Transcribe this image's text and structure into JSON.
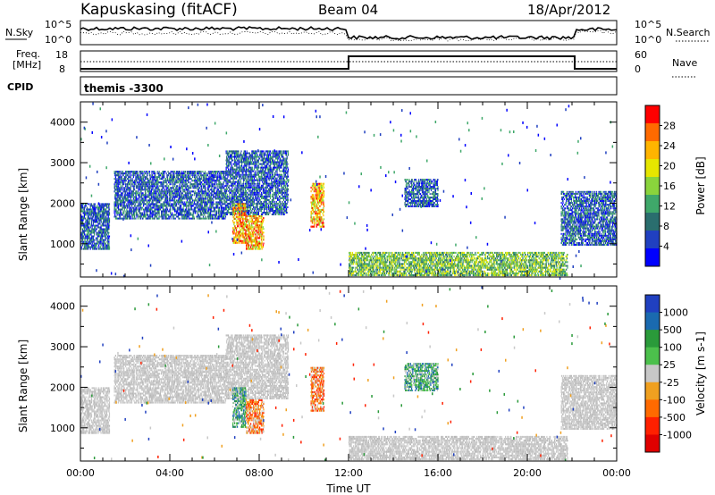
{
  "header": {
    "station": "Kapuskasing (fitACF)",
    "beam": "Beam 04",
    "date": "18/Apr/2012"
  },
  "top_panels": {
    "nsky_label": "N.Sky",
    "nsky_ticks": [
      "10^5",
      "10^0"
    ],
    "nsearch_label": "N.Search",
    "nsearch_ticks": [
      "10^5",
      "10^0"
    ],
    "freq_label_1": "Freq.",
    "freq_label_2": "[MHz]",
    "freq_ticks": [
      "18",
      "8"
    ],
    "nave_label": "Nave",
    "nave_ticks": [
      "60",
      "0"
    ],
    "cpid_label": "CPID",
    "cpid_value": "themis -3300"
  },
  "chart_data": [
    {
      "type": "heatmap",
      "title": "",
      "xlabel": "Time UT",
      "ylabel": "Slant Range [km]",
      "x_ticks": [
        "00:00",
        "04:00",
        "08:00",
        "12:00",
        "16:00",
        "20:00",
        "00:00"
      ],
      "y_ticks": [
        "1000",
        "2000",
        "3000",
        "4000"
      ],
      "xlim_hours": [
        0,
        24
      ],
      "ylim_km": [
        180,
        4500
      ],
      "colorbar": {
        "label": "Power [dB]",
        "ticks": [
          "28",
          "24",
          "20",
          "16",
          "12",
          "8",
          "4"
        ],
        "colors": [
          "#ff0000",
          "#ff6a00",
          "#ffb400",
          "#e6e600",
          "#8ad43c",
          "#3fa86a",
          "#2a6e6e",
          "#2040c0",
          "#0000ff"
        ]
      },
      "echo_regions": [
        {
          "t0": 0.0,
          "t1": 1.3,
          "r0": 850,
          "r1": 2000,
          "level": "low"
        },
        {
          "t0": 1.5,
          "t1": 6.5,
          "r0": 1600,
          "r1": 2800,
          "level": "low"
        },
        {
          "t0": 6.5,
          "t1": 9.3,
          "r0": 1700,
          "r1": 3300,
          "level": "low"
        },
        {
          "t0": 6.8,
          "t1": 7.4,
          "r0": 1000,
          "r1": 2000,
          "level": "high"
        },
        {
          "t0": 7.4,
          "t1": 8.2,
          "r0": 850,
          "r1": 1700,
          "level": "high"
        },
        {
          "t0": 10.3,
          "t1": 10.9,
          "r0": 1400,
          "r1": 2500,
          "level": "high"
        },
        {
          "t0": 12.0,
          "t1": 21.8,
          "r0": 200,
          "r1": 800,
          "level": "mid"
        },
        {
          "t0": 14.5,
          "t1": 16.0,
          "r0": 1900,
          "r1": 2600,
          "level": "low"
        },
        {
          "t0": 21.5,
          "t1": 24.0,
          "r0": 950,
          "r1": 2300,
          "level": "low"
        }
      ]
    },
    {
      "type": "heatmap",
      "title": "",
      "xlabel": "Time UT",
      "ylabel": "Slant Range [km]",
      "x_ticks": [
        "00:00",
        "04:00",
        "08:00",
        "12:00",
        "16:00",
        "20:00",
        "00:00"
      ],
      "y_ticks": [
        "1000",
        "2000",
        "3000",
        "4000"
      ],
      "xlim_hours": [
        0,
        24
      ],
      "ylim_km": [
        180,
        4500
      ],
      "colorbar": {
        "label": "Velocity [m s-1]",
        "ticks": [
          "1000",
          "500",
          "100",
          "25",
          "-25",
          "-100",
          "-500",
          "-1000"
        ],
        "colors": [
          "#2040c0",
          "#1a6ab0",
          "#2a9a3a",
          "#4cc04c",
          "#c8c8c8",
          "#f0a020",
          "#ff6a00",
          "#ff2000",
          "#e00000"
        ]
      },
      "echo_regions": [
        {
          "t0": 0.0,
          "t1": 1.3,
          "r0": 850,
          "r1": 2000,
          "level": "ground"
        },
        {
          "t0": 1.5,
          "t1": 6.5,
          "r0": 1600,
          "r1": 2800,
          "level": "ground"
        },
        {
          "t0": 6.5,
          "t1": 9.3,
          "r0": 1700,
          "r1": 3300,
          "level": "ground"
        },
        {
          "t0": 6.8,
          "t1": 7.4,
          "r0": 1000,
          "r1": 2000,
          "level": "positive"
        },
        {
          "t0": 7.4,
          "t1": 8.2,
          "r0": 850,
          "r1": 1700,
          "level": "negative"
        },
        {
          "t0": 10.3,
          "t1": 10.9,
          "r0": 1400,
          "r1": 2500,
          "level": "negative"
        },
        {
          "t0": 12.0,
          "t1": 21.8,
          "r0": 200,
          "r1": 800,
          "level": "ground"
        },
        {
          "t0": 14.5,
          "t1": 16.0,
          "r0": 1900,
          "r1": 2600,
          "level": "positive"
        },
        {
          "t0": 21.5,
          "t1": 24.0,
          "r0": 950,
          "r1": 2300,
          "level": "ground"
        }
      ]
    }
  ]
}
